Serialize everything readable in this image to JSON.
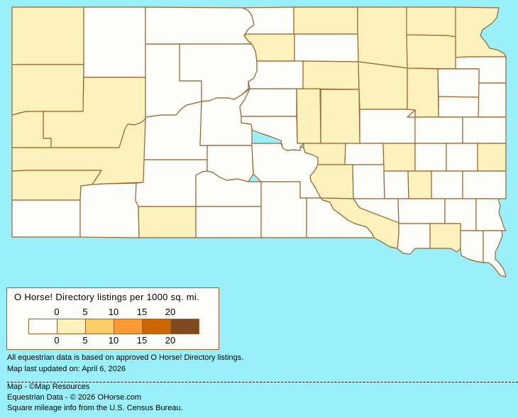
{
  "colors": {
    "background": "#99F0FB",
    "border": "#A0622D",
    "state_fill": "#FDFEFA"
  },
  "legend": {
    "title": "O Horse! Directory listings per 1000 sq. mi.",
    "top_ticks": [
      "0",
      "5",
      "10",
      "15",
      "20"
    ],
    "bottom_ticks": [
      "0",
      "5",
      "10",
      "15",
      "20"
    ],
    "bins": [
      {
        "range": "0",
        "color": "#FDFEFA"
      },
      {
        "range": "0-5",
        "color": "#FBF2BD"
      },
      {
        "range": "5-10",
        "color": "#FCCC66"
      },
      {
        "range": "10-15",
        "color": "#FB9933"
      },
      {
        "range": "15-20",
        "color": "#CC6600"
      },
      {
        "range": "20+",
        "color": "#7F4A1F"
      }
    ]
  },
  "counties_levels": [
    1,
    0,
    1,
    1,
    1,
    1,
    1,
    0,
    0,
    0,
    1,
    0,
    0,
    0,
    0,
    0,
    0,
    0,
    0,
    0,
    0,
    0,
    0,
    1,
    1,
    1,
    1,
    0,
    1,
    0,
    1,
    1,
    1,
    0,
    0,
    0,
    0,
    0,
    0,
    1,
    1,
    0,
    0,
    1,
    0,
    1,
    0,
    1,
    0,
    0,
    1,
    1,
    0,
    0,
    1,
    0,
    0,
    0,
    0,
    1,
    0
  ],
  "notes": {
    "line1": "All equestrian data is based on approved O Horse! Directory listings.",
    "line2": "Map last updated on: April 6, 2026"
  },
  "credits": {
    "map": "Map - ©Map Resources",
    "data": "Equestrian Data - © 2026 OHorse.com",
    "census": "Square mileage info from the U.S. Census Bureau."
  }
}
